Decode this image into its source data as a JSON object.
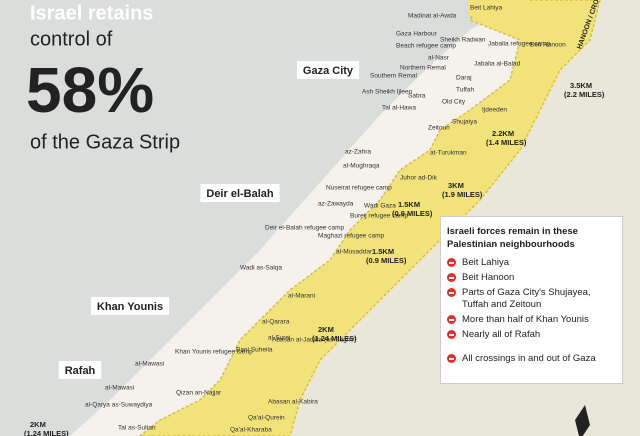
{
  "header": {
    "line1": "Israel retains",
    "line2": "control of",
    "figure": "58%",
    "line3": "of the Gaza Strip"
  },
  "crossing": "HANOON / CROSSING",
  "cities": [
    "Gaza City",
    "Deir el-Balah",
    "Khan Younis",
    "Rafah"
  ],
  "distances": [
    {
      "km": "3.5KM",
      "miles": "(2.2 MILES)"
    },
    {
      "km": "2.2KM",
      "miles": "(1.4 MILES)"
    },
    {
      "km": "3KM",
      "miles": "(1.9 MILES)"
    },
    {
      "km": "1.5KM",
      "miles": "(0.9 MILES)"
    },
    {
      "km": "1.5KM",
      "miles": "(0.9 MILES)"
    },
    {
      "km": "2KM",
      "miles": "(1.24 MILES)"
    },
    {
      "km": "2KM",
      "miles": "(1.24 MILES)"
    }
  ],
  "places": [
    "Beit Lahiya",
    "Madinat al-Awda",
    "Gaza Harbour",
    "Beach refugee camp",
    "Sheikh Radwan",
    "Jabalia refugee camp",
    "Beit Hanoon",
    "al-Nasr",
    "Jabalia al-Balad",
    "Northern Remal",
    "Southern Remal",
    "Daraj",
    "Ash Sheikh Ijleen",
    "Sabra",
    "Old City",
    "Tuffah",
    "Tal al-Hawa",
    "Ijdeeden",
    "Shujaiya",
    "Zeitoun",
    "at-Turukman",
    "az-Zahra",
    "al-Mughraqa",
    "Juhor ad-Dik",
    "Nuseirat refugee camp",
    "az-Zawayda",
    "Wadi Gaza",
    "Bureij refugee camp",
    "Deir el-Balah refugee camp",
    "Maghazi refugee camp",
    "al-Musaddar",
    "Wadi as-Salqa",
    "al-Marani",
    "al-Qarara",
    "al-Surej",
    "Khan Younis refugee camp",
    "Abasan al-Jadida (as-Saghir)",
    "Bani Suheila",
    "Abasan al-Kabira",
    "al-Mawasi",
    "al-Mawasi",
    "Qizan an-Najjar",
    "Qa'al-Qurein",
    "Qa'al-Kharaba",
    "al-Qarya as-Suwaydiya",
    "Tal as-Sultan"
  ],
  "legend": {
    "title": "Israeli forces remain in these Palestinian neighbourhoods",
    "items": [
      "Beit Lahiya",
      "Beit Hanoon",
      "Parts of Gaza City's Shujayea, Tuffah and Zeitoun",
      "More than half of Khan Younis",
      "Nearly all of Rafah",
      "All crossings in and out of Gaza"
    ]
  }
}
